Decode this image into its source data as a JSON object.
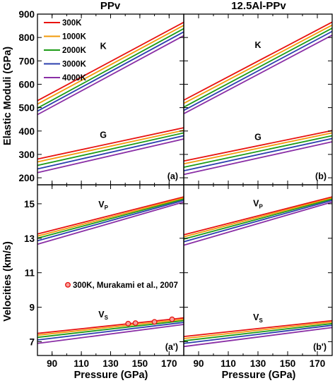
{
  "chart_data": {
    "type": "line",
    "panel_titles": [
      "PPv",
      "12.5Al-PPv"
    ],
    "xlabel": "Pressure (GPa)",
    "ylabel_top": "Elastic Moduli (GPa)",
    "ylabel_bottom": "Velocities (km/s)",
    "xlim": [
      80,
      180
    ],
    "x_ticks": [
      "90",
      "110",
      "130",
      "150",
      "170"
    ],
    "top_ylim": [
      170,
      900
    ],
    "top_y_ticks": [
      "200",
      "300",
      "400",
      "500",
      "600",
      "700",
      "800",
      "900"
    ],
    "bottom_ylim": [
      6.2,
      16.1
    ],
    "bottom_y_ticks": [
      "7",
      "9",
      "11",
      "13",
      "15"
    ],
    "legend": {
      "position": "top-left",
      "entries": [
        {
          "name": "300K",
          "color": "#e8120f"
        },
        {
          "name": "1000K",
          "color": "#f29a0a"
        },
        {
          "name": "2000K",
          "color": "#1d9c16"
        },
        {
          "name": "3000K",
          "color": "#2b3fae"
        },
        {
          "name": "4000K",
          "color": "#8a2fa6"
        }
      ]
    },
    "reference": {
      "label": "300K, Murakami et al., 2007",
      "color": "#e8120f",
      "points": [
        {
          "x": 142,
          "y": 8.05
        },
        {
          "x": 147,
          "y": 8.08
        },
        {
          "x": 160,
          "y": 8.15
        },
        {
          "x": 172,
          "y": 8.3
        }
      ]
    },
    "curve_x": [
      80,
      180
    ],
    "panels": [
      {
        "id": "(a)",
        "row": "moduli",
        "col": 0,
        "curve_labels": [
          {
            "text": "K",
            "x": 125,
            "y": 750
          },
          {
            "text": "G",
            "x": 125,
            "y": 370
          }
        ],
        "series": [
          {
            "name": "300K",
            "group": "K",
            "values": [
              530,
              865
            ]
          },
          {
            "name": "1000K",
            "group": "K",
            "values": [
              515,
              852
            ]
          },
          {
            "name": "2000K",
            "group": "K",
            "values": [
              498,
              838
            ]
          },
          {
            "name": "3000K",
            "group": "K",
            "values": [
              485,
              824
            ]
          },
          {
            "name": "4000K",
            "group": "K",
            "values": [
              470,
              808
            ]
          },
          {
            "name": "300K",
            "group": "G",
            "values": [
              280,
              414
            ]
          },
          {
            "name": "1000K",
            "group": "G",
            "values": [
              268,
              403
            ]
          },
          {
            "name": "2000K",
            "group": "G",
            "values": [
              253,
              392
            ]
          },
          {
            "name": "3000K",
            "group": "G",
            "values": [
              238,
              380
            ]
          },
          {
            "name": "4000K",
            "group": "G",
            "values": [
              222,
              366
            ]
          }
        ]
      },
      {
        "id": "(b)",
        "row": "moduli",
        "col": 1,
        "curve_labels": [
          {
            "text": "K",
            "x": 130,
            "y": 755
          },
          {
            "text": "G",
            "x": 130,
            "y": 362
          }
        ],
        "series": [
          {
            "name": "300K",
            "group": "K",
            "values": [
              532,
              866
            ]
          },
          {
            "name": "1000K",
            "group": "K",
            "values": [
              518,
              853
            ]
          },
          {
            "name": "2000K",
            "group": "K",
            "values": [
              502,
              840
            ]
          },
          {
            "name": "3000K",
            "group": "K",
            "values": [
              488,
              826
            ]
          },
          {
            "name": "4000K",
            "group": "K",
            "values": [
              474,
              810
            ]
          },
          {
            "name": "300K",
            "group": "G",
            "values": [
              272,
              402
            ]
          },
          {
            "name": "1000K",
            "group": "G",
            "values": [
              260,
              392
            ]
          },
          {
            "name": "2000K",
            "group": "G",
            "values": [
              245,
              380
            ]
          },
          {
            "name": "3000K",
            "group": "G",
            "values": [
              230,
              368
            ]
          },
          {
            "name": "4000K",
            "group": "G",
            "values": [
              214,
              354
            ]
          }
        ]
      },
      {
        "id": "(a')",
        "row": "velocities",
        "col": 0,
        "curve_labels": [
          {
            "text": "V",
            "sub": "P",
            "x": 125,
            "y": 14.8
          },
          {
            "text": "V",
            "sub": "S",
            "x": 125,
            "y": 8.4
          }
        ],
        "series": [
          {
            "name": "300K",
            "group": "VP",
            "values": [
              13.25,
              15.4
            ]
          },
          {
            "name": "1000K",
            "group": "VP",
            "values": [
              13.12,
              15.33
            ]
          },
          {
            "name": "2000K",
            "group": "VP",
            "values": [
              13.0,
              15.27
            ]
          },
          {
            "name": "3000K",
            "group": "VP",
            "values": [
              12.85,
              15.2
            ]
          },
          {
            "name": "4000K",
            "group": "VP",
            "values": [
              12.65,
              15.1
            ]
          },
          {
            "name": "300K",
            "group": "VS",
            "values": [
              7.48,
              8.38
            ]
          },
          {
            "name": "1000K",
            "group": "VS",
            "values": [
              7.38,
              8.3
            ]
          },
          {
            "name": "2000K",
            "group": "VS",
            "values": [
              7.25,
              8.22
            ]
          },
          {
            "name": "3000K",
            "group": "VS",
            "values": [
              7.1,
              8.12
            ]
          },
          {
            "name": "4000K",
            "group": "VS",
            "values": [
              6.9,
              8.0
            ]
          }
        ]
      },
      {
        "id": "(b')",
        "row": "velocities",
        "col": 1,
        "curve_labels": [
          {
            "text": "V",
            "sub": "P",
            "x": 130,
            "y": 14.85
          },
          {
            "text": "V",
            "sub": "S",
            "x": 130,
            "y": 8.25
          }
        ],
        "series": [
          {
            "name": "300K",
            "group": "VP",
            "values": [
              13.2,
              15.4
            ]
          },
          {
            "name": "1000K",
            "group": "VP",
            "values": [
              13.08,
              15.33
            ]
          },
          {
            "name": "2000K",
            "group": "VP",
            "values": [
              12.95,
              15.27
            ]
          },
          {
            "name": "3000K",
            "group": "VP",
            "values": [
              12.8,
              15.2
            ]
          },
          {
            "name": "4000K",
            "group": "VP",
            "values": [
              12.6,
              15.1
            ]
          },
          {
            "name": "300K",
            "group": "VS",
            "values": [
              7.3,
              8.22
            ]
          },
          {
            "name": "1000K",
            "group": "VS",
            "values": [
              7.18,
              8.14
            ]
          },
          {
            "name": "2000K",
            "group": "VS",
            "values": [
              7.05,
              8.05
            ]
          },
          {
            "name": "3000K",
            "group": "VS",
            "values": [
              6.9,
              7.95
            ]
          },
          {
            "name": "4000K",
            "group": "VS",
            "values": [
              6.72,
              7.82
            ]
          }
        ]
      }
    ]
  }
}
